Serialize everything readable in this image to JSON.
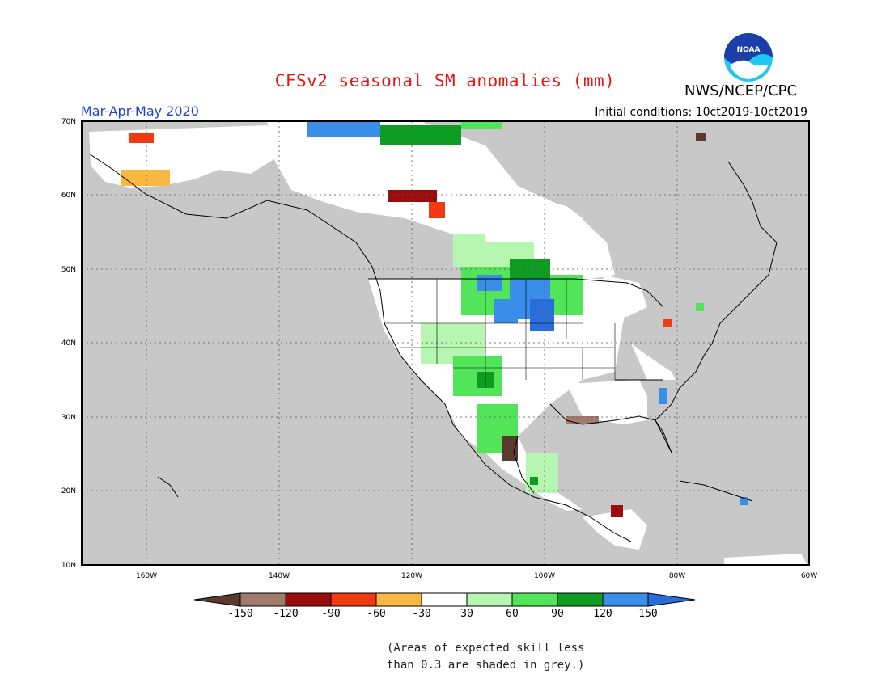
{
  "title": "CFSv2 seasonal SM anomalies (mm)",
  "agency": "NWS/NCEP/CPC",
  "logo_text": "NOAA",
  "season": "Mar-Apr-May 2020",
  "initial_conditions": "Initial conditions: 10ct2019-10ct2019",
  "lat_labels": [
    "70N",
    "60N",
    "50N",
    "40N",
    "30N",
    "20N",
    "10N"
  ],
  "lon_labels": [
    "160W",
    "140W",
    "120W",
    "100W",
    "80W",
    "60W"
  ],
  "colorbar": {
    "tick_labels": [
      "-150",
      "-120",
      "-90",
      "-60",
      "-30",
      "30",
      "60",
      "90",
      "120",
      "150"
    ],
    "colors": [
      "#5a3a30",
      "#a07a6c",
      "#9c0c0c",
      "#f03a10",
      "#f8b842",
      "#ffffff",
      "#b6f6b0",
      "#52e55a",
      "#0e9c22",
      "#3a8ee8",
      "#2a6cd8"
    ]
  },
  "footnote": [
    "(Areas of expected skill less",
    "than 0.3 are shaded in grey.)"
  ],
  "colors": {
    "ocean": "#c8c8c8",
    "no_skill": "#c8c8c8",
    "title": "#e8140f",
    "season": "#1f3fd8"
  }
}
